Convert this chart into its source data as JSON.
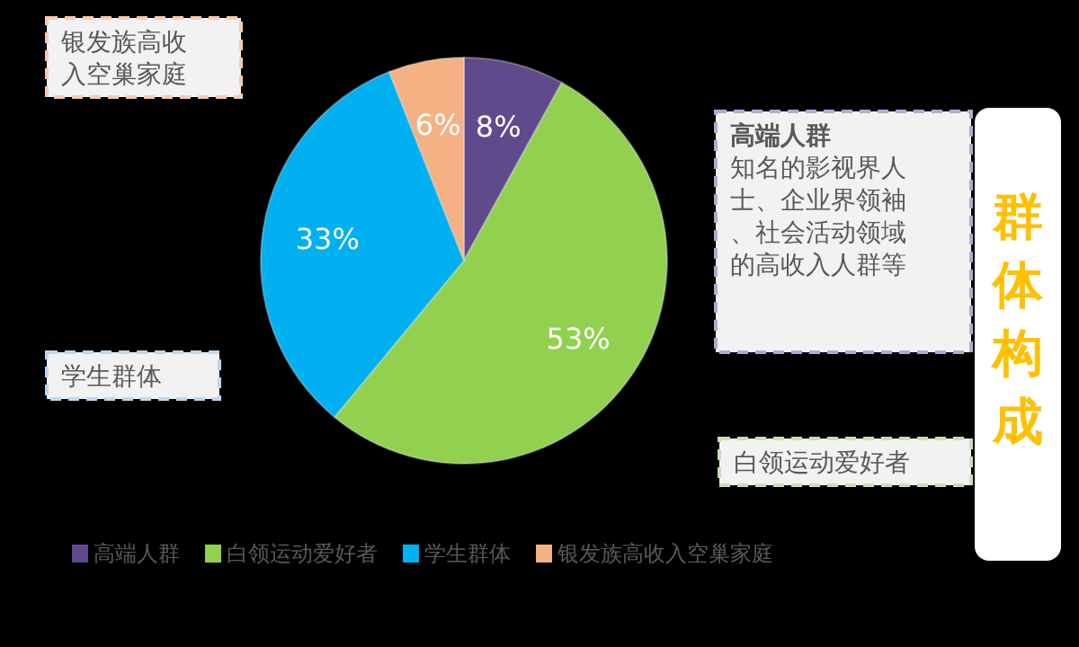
{
  "chart_data": {
    "type": "pie",
    "title": "群体构成",
    "categories": [
      "高端人群",
      "白领运动爱好者",
      "学生群体",
      "银发族高收入空巢家庭"
    ],
    "values": [
      8,
      53,
      33,
      6
    ],
    "colors": [
      "#5f4b8b",
      "#92d050",
      "#00b0f0",
      "#f4b183"
    ],
    "value_labels": [
      "8%",
      "53%",
      "33%",
      "6%"
    ],
    "legend": "bottom",
    "annotations": [
      "银发族高收入空巢家庭",
      "高端人群",
      "知名的影视界人士、企业界领袖、社会活动领域的高收入人群等",
      "学生群体",
      "白领运动爱好者"
    ]
  }
}
